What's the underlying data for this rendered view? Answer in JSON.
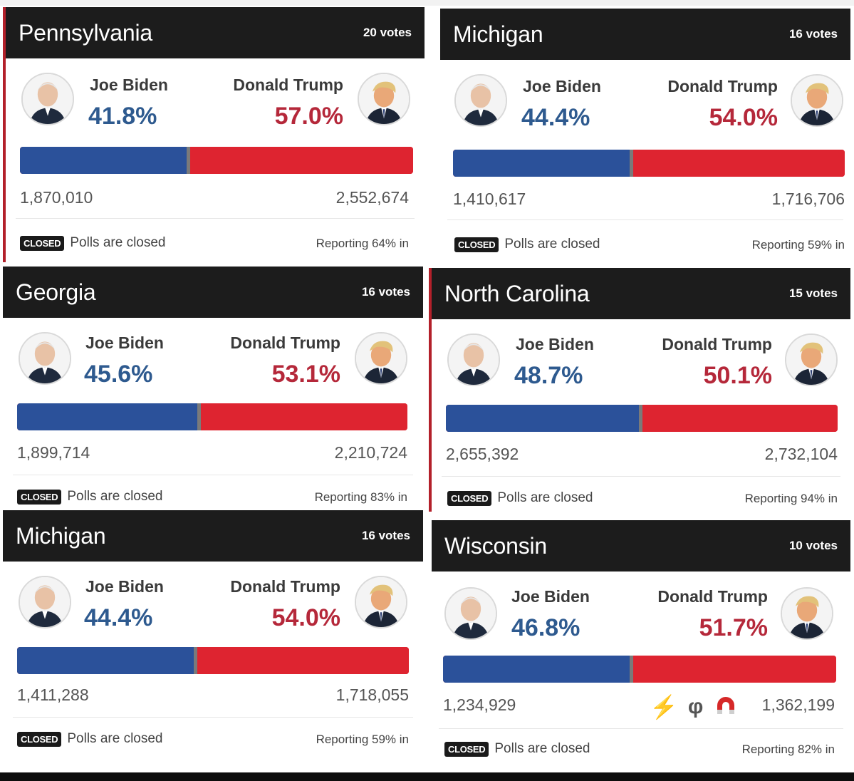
{
  "cards": [
    {
      "state": "Pennsylvania",
      "votes": "20 votes",
      "biden": {
        "name": "Joe Biden",
        "pct": "41.8%",
        "count": "1,870,010"
      },
      "trump": {
        "name": "Donald Trump",
        "pct": "57.0%",
        "count": "2,552,674"
      },
      "biden_share": 41.8,
      "trump_share": 57.0,
      "closed_badge": "CLOSED",
      "polls_text": "Polls are closed",
      "reporting": "Reporting 64% in"
    },
    {
      "state": "Michigan",
      "votes": "16 votes",
      "biden": {
        "name": "Joe Biden",
        "pct": "44.4%",
        "count": "1,410,617"
      },
      "trump": {
        "name": "Donald Trump",
        "pct": "54.0%",
        "count": "1,716,706"
      },
      "biden_share": 44.4,
      "trump_share": 54.0,
      "closed_badge": "CLOSED",
      "polls_text": "Polls are closed",
      "reporting": "Reporting 59% in"
    },
    {
      "state": "Georgia",
      "votes": "16 votes",
      "biden": {
        "name": "Joe Biden",
        "pct": "45.6%",
        "count": "1,899,714"
      },
      "trump": {
        "name": "Donald Trump",
        "pct": "53.1%",
        "count": "2,210,724"
      },
      "biden_share": 45.6,
      "trump_share": 53.1,
      "closed_badge": "CLOSED",
      "polls_text": "Polls are closed",
      "reporting": "Reporting 83% in"
    },
    {
      "state": "North Carolina",
      "votes": "15 votes",
      "biden": {
        "name": "Joe Biden",
        "pct": "48.7%",
        "count": "2,655,392"
      },
      "trump": {
        "name": "Donald Trump",
        "pct": "50.1%",
        "count": "2,732,104"
      },
      "biden_share": 48.7,
      "trump_share": 50.1,
      "closed_badge": "CLOSED",
      "polls_text": "Polls are closed",
      "reporting": "Reporting 94% in"
    },
    {
      "state": "Michigan",
      "votes": "16 votes",
      "biden": {
        "name": "Joe Biden",
        "pct": "44.4%",
        "count": "1,411,288"
      },
      "trump": {
        "name": "Donald Trump",
        "pct": "54.0%",
        "count": "1,718,055"
      },
      "biden_share": 44.4,
      "trump_share": 54.0,
      "closed_badge": "CLOSED",
      "polls_text": "Polls are closed",
      "reporting": "Reporting 59% in"
    },
    {
      "state": "Wisconsin",
      "votes": "10 votes",
      "biden": {
        "name": "Joe Biden",
        "pct": "46.8%",
        "count": "1,234,929"
      },
      "trump": {
        "name": "Donald Trump",
        "pct": "51.7%",
        "count": "1,362,199"
      },
      "biden_share": 46.8,
      "trump_share": 51.7,
      "closed_badge": "CLOSED",
      "polls_text": "Polls are closed",
      "reporting": "Reporting 82% in",
      "emojis": [
        "lightning-icon",
        "phi-symbol-icon",
        "magnet-icon"
      ]
    }
  ],
  "colors": {
    "header": "#1c1c1c",
    "biden_blue": "#2b519a",
    "trump_red": "#de2430",
    "biden_pct": "#2e5a8f",
    "trump_pct": "#b5283a"
  }
}
